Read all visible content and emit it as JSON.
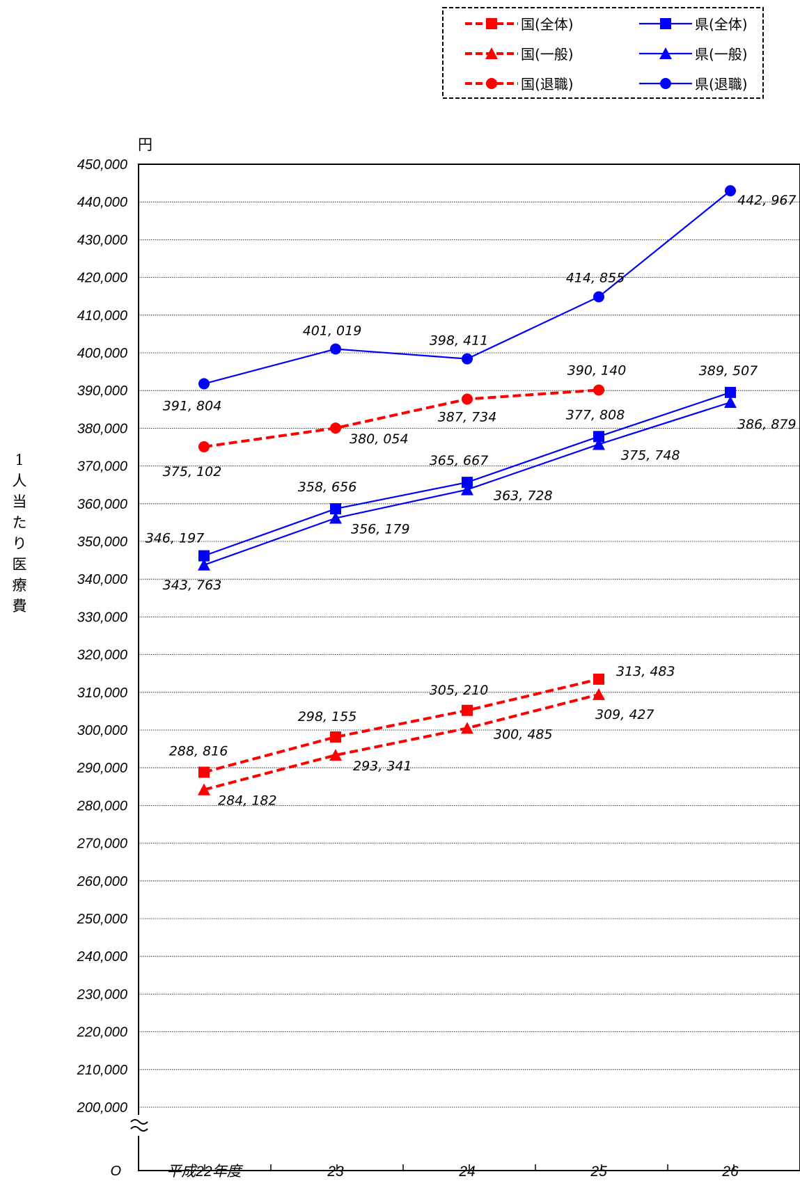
{
  "chart_data": {
    "type": "line",
    "unit_label": "円",
    "ylabel": "1人当たり医療費",
    "xlabel": "",
    "categories": [
      "平成22年度",
      "23",
      "24",
      "25",
      "26"
    ],
    "ylim": [
      200000,
      450000
    ],
    "y_ticks": [
      "450,000",
      "440,000",
      "430,000",
      "420,000",
      "410,000",
      "400,000",
      "390,000",
      "380,000",
      "370,000",
      "360,000",
      "350,000",
      "340,000",
      "330,000",
      "320,000",
      "310,000",
      "300,000",
      "290,000",
      "280,000",
      "270,000",
      "260,000",
      "250,000",
      "240,000",
      "230,000",
      "220,000",
      "210,000",
      "200,000"
    ],
    "y_origin_label": "O",
    "axis_break": true,
    "grid": true,
    "legend_position": "top-right",
    "colors": {
      "national": "#ff0000",
      "prefecture": "#0000ff"
    },
    "series": [
      {
        "name": "国(全体)",
        "color": "#ff0000",
        "dash": true,
        "marker": "square",
        "values": [
          288816,
          298155,
          305210,
          313483,
          null
        ],
        "labels": [
          "288, 816",
          "298, 155",
          "305, 210",
          "313, 483",
          null
        ]
      },
      {
        "name": "国(一般)",
        "color": "#ff0000",
        "dash": true,
        "marker": "triangle",
        "values": [
          284182,
          293341,
          300485,
          309427,
          null
        ],
        "labels": [
          "284, 182",
          "293, 341",
          "300, 485",
          "309, 427",
          null
        ]
      },
      {
        "name": "国(退職)",
        "color": "#ff0000",
        "dash": true,
        "marker": "circle",
        "values": [
          375102,
          380054,
          387734,
          390140,
          null
        ],
        "labels": [
          "375, 102",
          "380, 054",
          "387, 734",
          "390, 140",
          null
        ]
      },
      {
        "name": "県(全体)",
        "color": "#0000ff",
        "dash": false,
        "marker": "square",
        "values": [
          346197,
          358656,
          365667,
          377808,
          389507
        ],
        "labels": [
          "346, 197",
          "358, 656",
          "365, 667",
          "377, 808",
          "389, 507"
        ]
      },
      {
        "name": "県(一般)",
        "color": "#0000ff",
        "dash": false,
        "marker": "triangle",
        "values": [
          343763,
          356179,
          363728,
          375748,
          386879
        ],
        "labels": [
          "343, 763",
          "356, 179",
          "363, 728",
          "375, 748",
          "386, 879"
        ]
      },
      {
        "name": "県(退職)",
        "color": "#0000ff",
        "dash": false,
        "marker": "circle",
        "values": [
          391804,
          401019,
          398411,
          414855,
          442967
        ],
        "labels": [
          "391, 804",
          "401, 019",
          "398, 411",
          "414, 855",
          "442, 967"
        ]
      }
    ]
  }
}
